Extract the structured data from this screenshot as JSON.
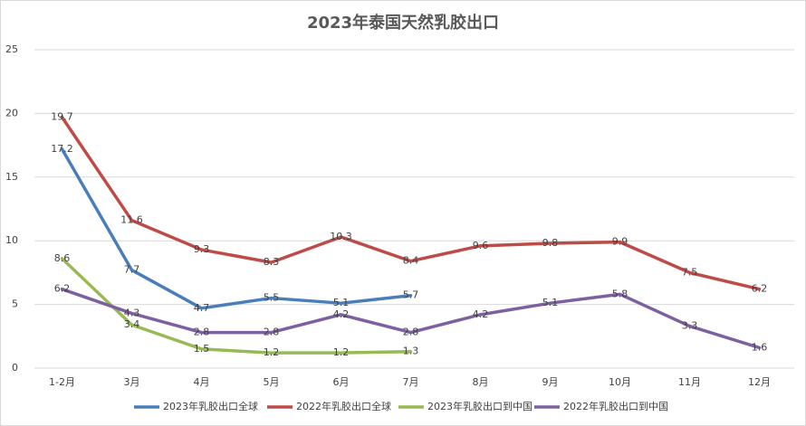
{
  "chart_data": {
    "type": "line",
    "title": "2023年泰国天然乳胶出口",
    "categories": [
      "1-2月",
      "3月",
      "4月",
      "5月",
      "6月",
      "7月",
      "8月",
      "9月",
      "10月",
      "11月",
      "12月"
    ],
    "series": [
      {
        "name": "2023年乳胶出口全球",
        "color": "#4a7ebb",
        "values": [
          17.2,
          7.7,
          4.7,
          5.5,
          5.1,
          5.7,
          null,
          null,
          null,
          null,
          null
        ]
      },
      {
        "name": "2022年乳胶出口全球",
        "color": "#be4b48",
        "values": [
          19.7,
          11.6,
          9.3,
          8.3,
          10.3,
          8.4,
          9.6,
          9.8,
          9.9,
          7.5,
          6.2
        ]
      },
      {
        "name": "2023年乳胶出口到中国",
        "color": "#98b954",
        "values": [
          8.6,
          3.4,
          1.5,
          1.2,
          1.2,
          1.3,
          null,
          null,
          null,
          null,
          null
        ]
      },
      {
        "name": "2022年乳胶出口到中国",
        "color": "#7d60a0",
        "values": [
          6.2,
          4.3,
          2.8,
          2.8,
          4.2,
          2.8,
          4.2,
          5.1,
          5.8,
          3.3,
          1.6
        ]
      }
    ],
    "ylim": [
      0,
      25
    ],
    "yticks": [
      0,
      5,
      10,
      15,
      20,
      25
    ],
    "grid": true,
    "legend": "bottom"
  }
}
